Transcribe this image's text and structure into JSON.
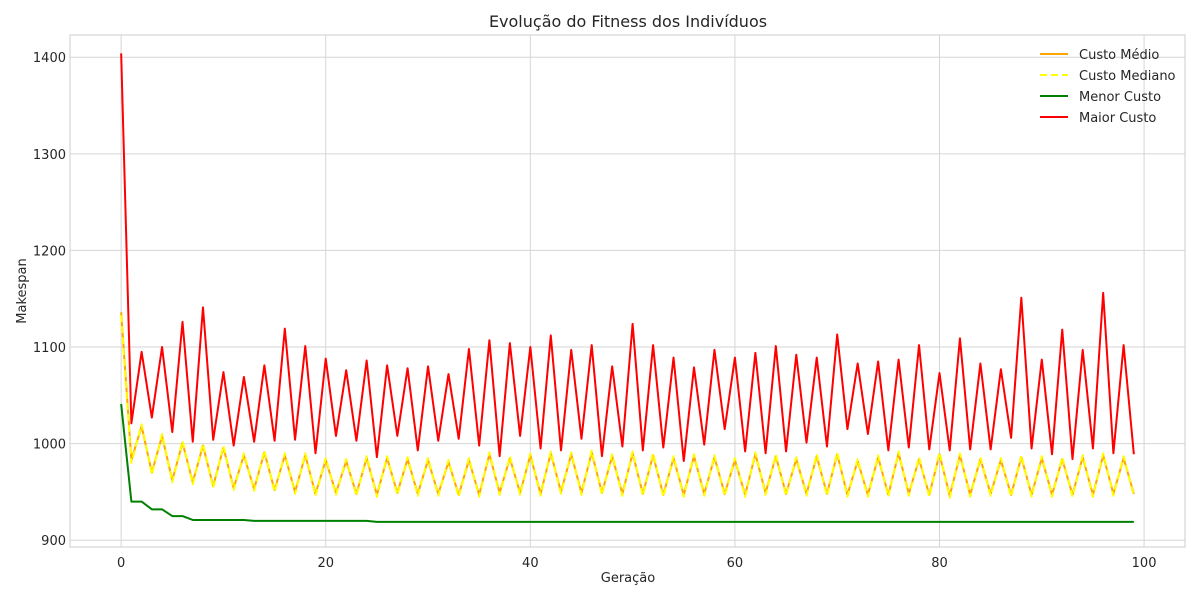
{
  "chart_data": {
    "type": "line",
    "title": "Evolução do Fitness dos Indivíduos",
    "xlabel": "Geração",
    "ylabel": "Makespan",
    "xlim": [
      -5,
      104
    ],
    "ylim": [
      893,
      1423
    ],
    "xticks": [
      0,
      20,
      40,
      60,
      80,
      100
    ],
    "yticks": [
      900,
      1000,
      1100,
      1200,
      1300,
      1400
    ],
    "grid": true,
    "legend_position": "top-right",
    "x": [
      0,
      1,
      2,
      3,
      4,
      5,
      6,
      7,
      8,
      9,
      10,
      11,
      12,
      13,
      14,
      15,
      16,
      17,
      18,
      19,
      20,
      21,
      22,
      23,
      24,
      25,
      26,
      27,
      28,
      29,
      30,
      31,
      32,
      33,
      34,
      35,
      36,
      37,
      38,
      39,
      40,
      41,
      42,
      43,
      44,
      45,
      46,
      47,
      48,
      49,
      50,
      51,
      52,
      53,
      54,
      55,
      56,
      57,
      58,
      59,
      60,
      61,
      62,
      63,
      64,
      65,
      66,
      67,
      68,
      69,
      70,
      71,
      72,
      73,
      74,
      75,
      76,
      77,
      78,
      79,
      80,
      81,
      82,
      83,
      84,
      85,
      86,
      87,
      88,
      89,
      90,
      91,
      92,
      93,
      94,
      95,
      96,
      97,
      98,
      99
    ],
    "series": [
      {
        "name": "Custo Médio",
        "color": "#ffa500",
        "dash": "solid",
        "values": [
          1136,
          983,
          1018,
          970,
          1008,
          962,
          1001,
          960,
          998,
          956,
          996,
          954,
          988,
          953,
          991,
          952,
          988,
          950,
          988,
          948,
          983,
          949,
          982,
          948,
          985,
          947,
          985,
          949,
          984,
          948,
          983,
          948,
          981,
          947,
          983,
          947,
          989,
          949,
          985,
          949,
          988,
          948,
          990,
          950,
          989,
          949,
          991,
          949,
          987,
          948,
          990,
          948,
          988,
          947,
          985,
          947,
          987,
          948,
          986,
          948,
          983,
          947,
          989,
          949,
          987,
          948,
          984,
          948,
          987,
          948,
          989,
          947,
          982,
          947,
          986,
          947,
          990,
          948,
          984,
          947,
          989,
          946,
          988,
          947,
          984,
          948,
          983,
          947,
          986,
          947,
          985,
          947,
          984,
          947,
          986,
          947,
          988,
          948,
          985,
          948
        ]
      },
      {
        "name": "Custo Mediano",
        "color": "#ffff00",
        "dash": "dashed",
        "values": [
          1133,
          980,
          1020,
          968,
          1010,
          960,
          1003,
          958,
          1000,
          954,
          998,
          952,
          990,
          951,
          993,
          950,
          990,
          948,
          990,
          946,
          985,
          947,
          984,
          946,
          987,
          945,
          987,
          947,
          986,
          946,
          985,
          946,
          983,
          945,
          985,
          945,
          991,
          947,
          987,
          947,
          990,
          946,
          992,
          948,
          991,
          947,
          993,
          947,
          989,
          946,
          992,
          946,
          990,
          945,
          987,
          945,
          989,
          946,
          988,
          946,
          985,
          945,
          991,
          947,
          989,
          946,
          986,
          946,
          989,
          946,
          991,
          945,
          984,
          945,
          988,
          945,
          992,
          946,
          986,
          945,
          991,
          944,
          990,
          945,
          986,
          946,
          985,
          945,
          988,
          945,
          987,
          945,
          986,
          945,
          988,
          945,
          990,
          946,
          987,
          946
        ]
      },
      {
        "name": "Menor Custo",
        "color": "#008000",
        "dash": "solid",
        "values": [
          1041,
          940,
          940,
          932,
          932,
          925,
          925,
          921,
          921,
          921,
          921,
          921,
          921,
          920,
          920,
          920,
          920,
          920,
          920,
          920,
          920,
          920,
          920,
          920,
          920,
          919,
          919,
          919,
          919,
          919,
          919,
          919,
          919,
          919,
          919,
          919,
          919,
          919,
          919,
          919,
          919,
          919,
          919,
          919,
          919,
          919,
          919,
          919,
          919,
          919,
          919,
          919,
          919,
          919,
          919,
          919,
          919,
          919,
          919,
          919,
          919,
          919,
          919,
          919,
          919,
          919,
          919,
          919,
          919,
          919,
          919,
          919,
          919,
          919,
          919,
          919,
          919,
          919,
          919,
          919,
          919,
          919,
          919,
          919,
          919,
          919,
          919,
          919,
          919,
          919,
          919,
          919,
          919,
          919,
          919,
          919,
          919,
          919,
          919,
          919
        ]
      },
      {
        "name": "Maior Custo",
        "color": "#ff0000",
        "dash": "solid",
        "values": [
          1404,
          1021,
          1095,
          1027,
          1100,
          1012,
          1126,
          1002,
          1141,
          1004,
          1074,
          998,
          1069,
          1002,
          1081,
          1003,
          1119,
          1004,
          1101,
          990,
          1088,
          1008,
          1076,
          1003,
          1086,
          986,
          1081,
          1008,
          1078,
          993,
          1080,
          1003,
          1072,
          1005,
          1098,
          998,
          1107,
          987,
          1104,
          1008,
          1100,
          995,
          1112,
          993,
          1097,
          1005,
          1102,
          987,
          1080,
          997,
          1124,
          993,
          1102,
          996,
          1089,
          982,
          1079,
          999,
          1097,
          1015,
          1089,
          992,
          1094,
          990,
          1101,
          992,
          1092,
          1001,
          1089,
          997,
          1113,
          1015,
          1083,
          1010,
          1085,
          993,
          1087,
          996,
          1102,
          994,
          1073,
          993,
          1109,
          994,
          1083,
          994,
          1077,
          1006,
          1151,
          995,
          1087,
          989,
          1118,
          984,
          1097,
          995,
          1156,
          990,
          1102,
          989
        ]
      }
    ]
  }
}
